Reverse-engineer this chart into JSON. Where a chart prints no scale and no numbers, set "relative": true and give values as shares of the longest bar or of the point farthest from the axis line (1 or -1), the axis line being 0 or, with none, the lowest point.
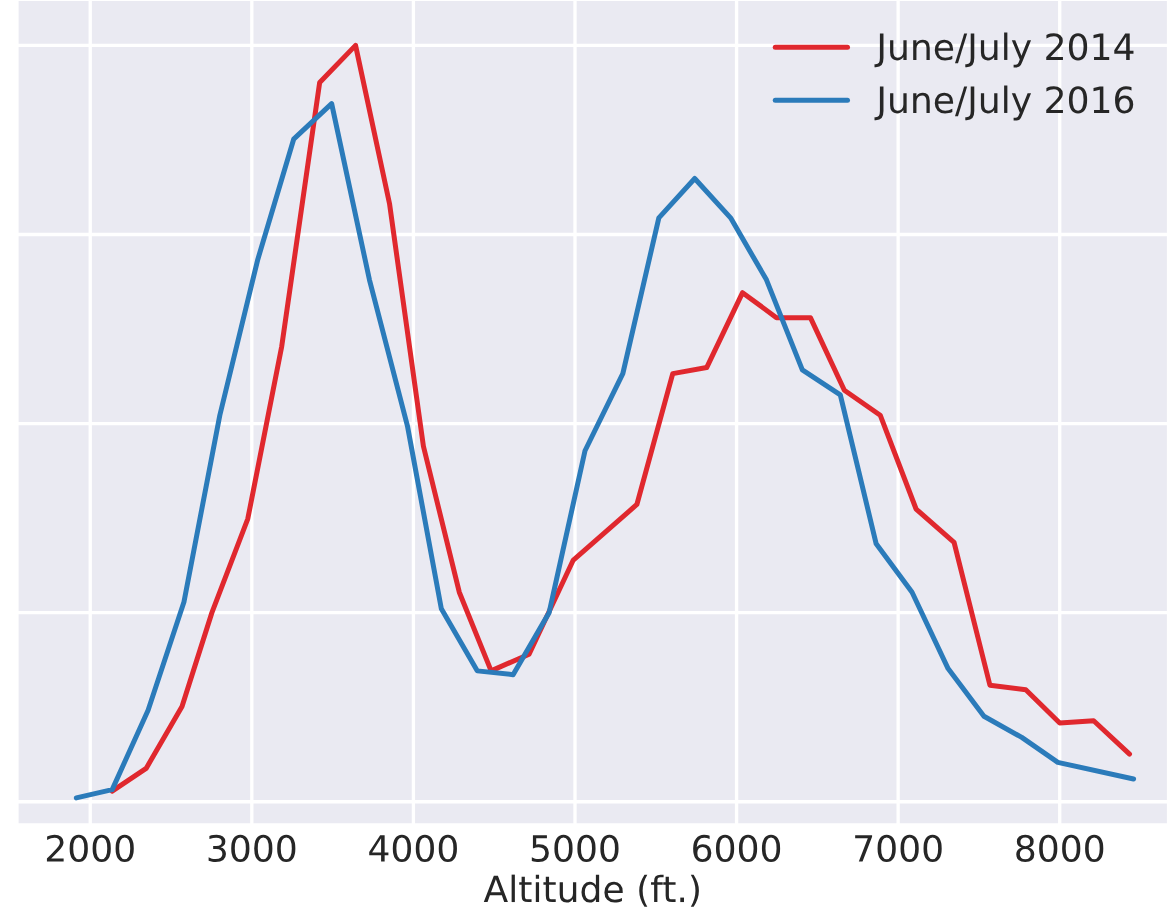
{
  "chart_data": {
    "type": "line",
    "relative": true,
    "xlabel": "Altitude (ft.)",
    "xlim": [
      1550,
      8670
    ],
    "xticks": [
      2000,
      3000,
      4000,
      5000,
      6000,
      7000,
      8000
    ],
    "grid": true,
    "legend": "top right",
    "tick_labels": "x",
    "series": [
      {
        "name": "June/July 2014",
        "color": "#e0282e",
        "x": [
          2136,
          2346,
          2568,
          2753,
          2975,
          3185,
          3420,
          3642,
          3852,
          4062,
          4284,
          4481,
          4716,
          4988,
          5383,
          5605,
          5815,
          6037,
          6247,
          6457,
          6667,
          6889,
          7111,
          7346,
          7568,
          7790,
          8000,
          8210,
          8432
        ],
        "values": [
          0.014,
          0.044,
          0.126,
          0.25,
          0.374,
          0.602,
          0.951,
          1.0,
          0.791,
          0.47,
          0.277,
          0.173,
          0.195,
          0.319,
          0.393,
          0.566,
          0.574,
          0.673,
          0.64,
          0.64,
          0.544,
          0.511,
          0.387,
          0.343,
          0.154,
          0.148,
          0.104,
          0.107,
          0.063
        ]
      },
      {
        "name": "June/July 2016",
        "color": "#2b7bba",
        "x": [
          1914,
          2136,
          2358,
          2580,
          2802,
          3037,
          3259,
          3494,
          3728,
          3963,
          4173,
          4395,
          4617,
          4840,
          5062,
          5296,
          5519,
          5741,
          5963,
          6185,
          6407,
          6642,
          6864,
          7086,
          7309,
          7531,
          7765,
          7988,
          8457
        ],
        "values": [
          0.005,
          0.016,
          0.121,
          0.264,
          0.511,
          0.717,
          0.876,
          0.923,
          0.69,
          0.497,
          0.255,
          0.173,
          0.168,
          0.25,
          0.464,
          0.566,
          0.772,
          0.824,
          0.772,
          0.69,
          0.571,
          0.538,
          0.341,
          0.277,
          0.176,
          0.113,
          0.085,
          0.052,
          0.03
        ]
      }
    ]
  }
}
